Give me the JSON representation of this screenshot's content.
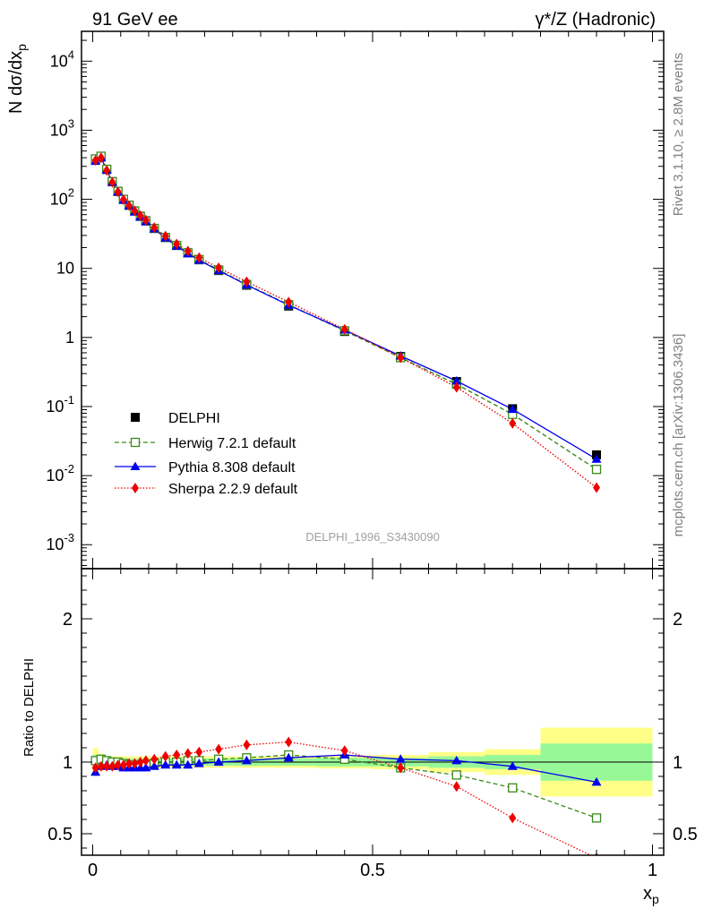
{
  "header": {
    "left": "91 GeV ee",
    "right": "γ*/Z (Hadronic)"
  },
  "side": {
    "rivet": "Rivet 3.1.10, ≥ 2.8M events",
    "mcplots": "mcplots.cern.ch [arXiv:1306.3436]"
  },
  "watermark": "DELPHI_1996_S3430090",
  "colors": {
    "data": "#000000",
    "herwig": "#3a8a1a",
    "pythia": "#0000ee",
    "sherpa": "#ee0000",
    "band_inner": "#98f898",
    "band_outer": "#ffff88"
  },
  "chart_data": [
    {
      "type": "scatter",
      "yscale": "log",
      "ylabel": "N dσ/dx",
      "ylabel_sub": "p",
      "xlim": [
        -0.02,
        1.02
      ],
      "ylim": [
        0.00045,
        27000
      ],
      "ytick_labels": [
        "10^-3",
        "10^-2",
        "10^-1",
        "1",
        "10",
        "10^2",
        "10^3",
        "10^4"
      ],
      "legend_position": "lower-left",
      "x": [
        0.005,
        0.015,
        0.025,
        0.035,
        0.045,
        0.055,
        0.065,
        0.075,
        0.085,
        0.095,
        0.11,
        0.13,
        0.15,
        0.17,
        0.19,
        0.225,
        0.275,
        0.35,
        0.45,
        0.55,
        0.65,
        0.75,
        0.9
      ],
      "series": [
        {
          "name": "DELPHI",
          "key": "data",
          "values": [
            380,
            410,
            270,
            180,
            130,
            100,
            82,
            68,
            57,
            49,
            38,
            28,
            21.5,
            16.7,
            13.3,
            9.3,
            5.7,
            2.85,
            1.22,
            0.53,
            0.23,
            0.093,
            0.02
          ]
        },
        {
          "name": "Herwig 7.2.1 default",
          "key": "herwig",
          "values": [
            385,
            420,
            272,
            180,
            130,
            100,
            82,
            67.5,
            56.5,
            48.5,
            37.8,
            28,
            21.5,
            16.8,
            13.4,
            9.5,
            5.85,
            2.98,
            1.25,
            0.51,
            0.21,
            0.077,
            0.0123
          ]
        },
        {
          "name": "Pythia 8.308 default",
          "key": "pythia",
          "values": [
            355,
            400,
            265,
            176,
            127,
            97,
            80,
            66,
            55.5,
            47.5,
            37.2,
            27.5,
            21.0,
            16.3,
            13.1,
            9.3,
            5.75,
            2.93,
            1.28,
            0.54,
            0.234,
            0.091,
            0.0173
          ]
        },
        {
          "name": "Sherpa 2.2.9 default",
          "key": "sherpa",
          "values": [
            365,
            400,
            262,
            176,
            128,
            99,
            81,
            68,
            58,
            50,
            39,
            29.3,
            22.5,
            17.8,
            14.3,
            10.2,
            6.4,
            3.25,
            1.31,
            0.51,
            0.19,
            0.057,
            0.0067
          ]
        }
      ]
    },
    {
      "type": "line",
      "xlabel": "x",
      "xlabel_sub": "p",
      "ylabel": "Ratio to DELPHI",
      "xlim": [
        -0.02,
        1.02
      ],
      "ylim": [
        0.35,
        2.35
      ],
      "xtick_labels": [
        "0",
        "0.5",
        "1"
      ],
      "ytick_labels": [
        "0.5",
        "1",
        "2"
      ],
      "x": [
        0.005,
        0.015,
        0.025,
        0.035,
        0.045,
        0.055,
        0.065,
        0.075,
        0.085,
        0.095,
        0.11,
        0.13,
        0.15,
        0.17,
        0.19,
        0.225,
        0.275,
        0.35,
        0.45,
        0.55,
        0.65,
        0.75,
        0.9
      ],
      "band_edges": [
        0,
        0.01,
        0.02,
        0.03,
        0.04,
        0.05,
        0.06,
        0.07,
        0.08,
        0.09,
        0.1,
        0.12,
        0.14,
        0.16,
        0.18,
        0.2,
        0.25,
        0.3,
        0.4,
        0.5,
        0.6,
        0.7,
        0.8,
        1.0
      ],
      "band_inner": [
        0.05,
        0.03,
        0.025,
        0.025,
        0.025,
        0.025,
        0.025,
        0.025,
        0.025,
        0.025,
        0.025,
        0.025,
        0.025,
        0.025,
        0.025,
        0.025,
        0.025,
        0.025,
        0.03,
        0.03,
        0.04,
        0.05,
        0.13
      ],
      "band_outer": [
        0.1,
        0.06,
        0.04,
        0.04,
        0.04,
        0.04,
        0.04,
        0.04,
        0.04,
        0.04,
        0.04,
        0.04,
        0.04,
        0.04,
        0.04,
        0.04,
        0.04,
        0.04,
        0.045,
        0.05,
        0.07,
        0.09,
        0.24
      ],
      "series": [
        {
          "name": "Herwig 7.2.1 default",
          "key": "herwig",
          "values": [
            1.01,
            1.02,
            1.01,
            1.0,
            1.0,
            0.99,
            0.98,
            0.98,
            0.98,
            0.98,
            0.99,
            1.0,
            1.0,
            1.01,
            1.01,
            1.02,
            1.03,
            1.05,
            1.02,
            0.96,
            0.91,
            0.82,
            0.61
          ]
        },
        {
          "name": "Pythia 8.308 default",
          "key": "pythia",
          "values": [
            0.93,
            0.97,
            0.98,
            0.97,
            0.97,
            0.96,
            0.96,
            0.96,
            0.96,
            0.96,
            0.97,
            0.98,
            0.98,
            0.98,
            0.99,
            1.0,
            1.01,
            1.03,
            1.05,
            1.02,
            1.01,
            0.97,
            0.86
          ]
        },
        {
          "name": "Sherpa 2.2.9 default",
          "key": "sherpa",
          "values": [
            0.96,
            0.97,
            0.97,
            0.97,
            0.98,
            0.98,
            0.99,
            0.99,
            1.0,
            1.01,
            1.02,
            1.04,
            1.05,
            1.06,
            1.07,
            1.09,
            1.12,
            1.14,
            1.08,
            0.96,
            0.83,
            0.61,
            0.33
          ]
        }
      ]
    }
  ]
}
